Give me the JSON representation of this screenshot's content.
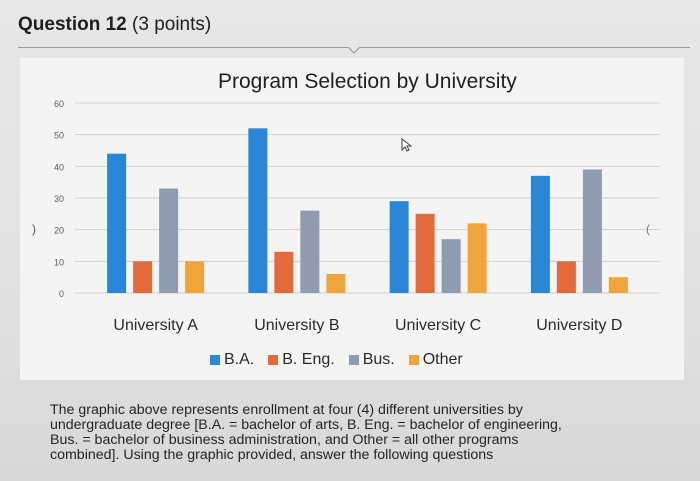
{
  "question": {
    "title": "Question 12",
    "points": "(3 points)"
  },
  "description": {
    "lines": [
      "The graphic above represents enrollment at four (4) different universities by",
      "undergraduate degree [B.A. = bachelor of arts, B. Eng. = bachelor of engineering,",
      "Bus. = bachelor of business administration, and Other = all other programs",
      "combined]. Using the graphic provided, answer the following questions"
    ]
  },
  "colors": {
    "B.A.": "#2a86d6",
    "B. Eng.": "#e46a3c",
    "Bus.": "#8e9bb0",
    "Other": "#f2a43c",
    "grid": "#cfcfcf"
  },
  "icons": [
    "cursor-arrow-icon"
  ],
  "chart_data": {
    "type": "bar",
    "title": "Program Selection by University",
    "categories": [
      "University A",
      "University B",
      "University C",
      "University D"
    ],
    "series": [
      {
        "name": "B.A.",
        "values": [
          44,
          52,
          29,
          37
        ]
      },
      {
        "name": "B. Eng.",
        "values": [
          10,
          13,
          25,
          10
        ]
      },
      {
        "name": "Bus.",
        "values": [
          33,
          26,
          17,
          39
        ]
      },
      {
        "name": "Other",
        "values": [
          10,
          6,
          22,
          5
        ]
      }
    ],
    "y_ticks": [
      "0",
      "10",
      "20",
      "30",
      "40",
      "50",
      "60"
    ],
    "ylim": [
      0,
      60
    ],
    "grid": true,
    "legend_position": "bottom"
  }
}
